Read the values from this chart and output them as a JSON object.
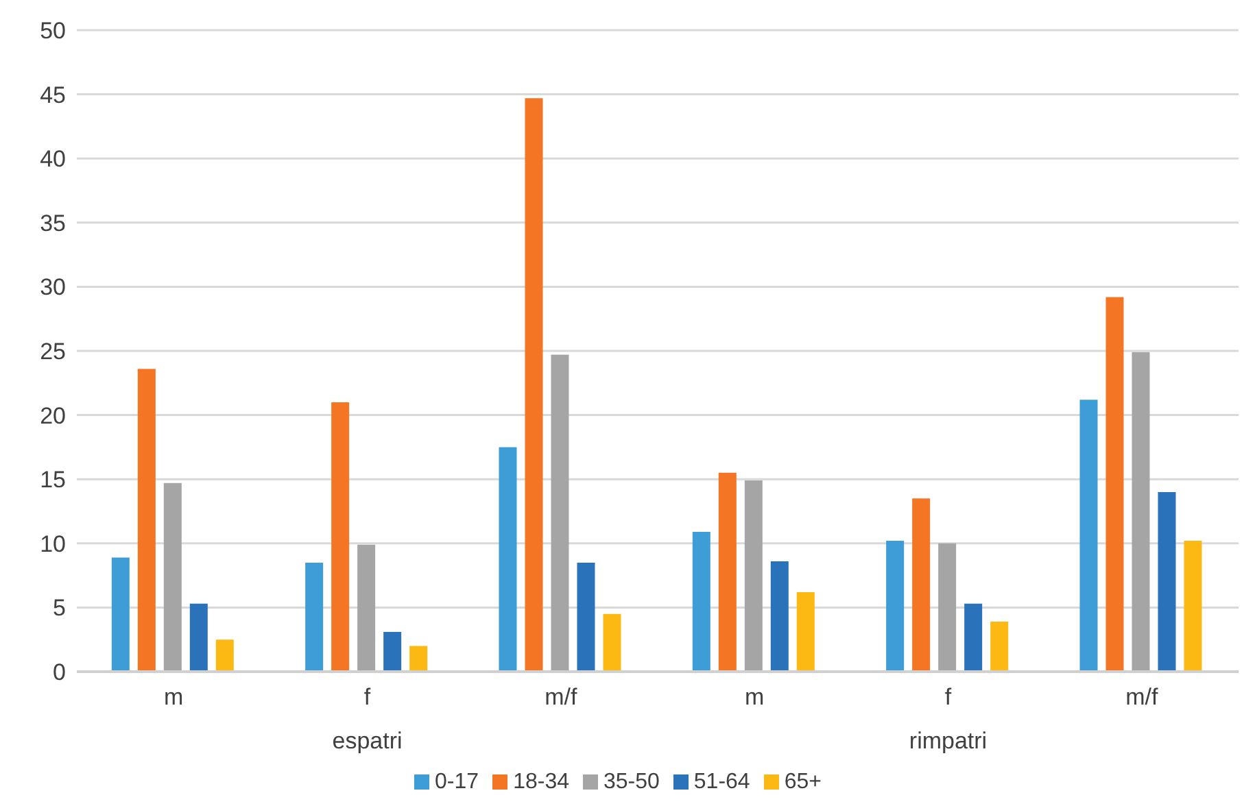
{
  "chart_data": {
    "type": "bar",
    "categories": [
      "m",
      "f",
      "m/f",
      "m",
      "f",
      "m/f"
    ],
    "annotations": [
      "espatri",
      "rimpatri"
    ],
    "series": [
      {
        "name": "0-17",
        "color": "#3e9dd6",
        "values": [
          8.9,
          8.5,
          17.5,
          10.9,
          10.2,
          21.2
        ]
      },
      {
        "name": "18-34",
        "color": "#f47523",
        "values": [
          23.6,
          21.0,
          44.7,
          15.5,
          13.5,
          29.2
        ]
      },
      {
        "name": "35-50",
        "color": "#a5a5a5",
        "values": [
          14.7,
          9.9,
          24.7,
          14.9,
          10.0,
          24.9
        ]
      },
      {
        "name": "51-64",
        "color": "#2a72b9",
        "values": [
          5.3,
          3.1,
          8.5,
          8.6,
          5.3,
          14.0
        ]
      },
      {
        "name": "65+",
        "color": "#fdb913",
        "values": [
          2.5,
          2.0,
          4.5,
          6.2,
          3.9,
          10.2
        ]
      }
    ],
    "ylim": [
      0,
      50
    ],
    "yticks": [
      0,
      5,
      10,
      15,
      20,
      25,
      30,
      35,
      40,
      45,
      50
    ],
    "grid": "y",
    "legend": "bottom"
  }
}
